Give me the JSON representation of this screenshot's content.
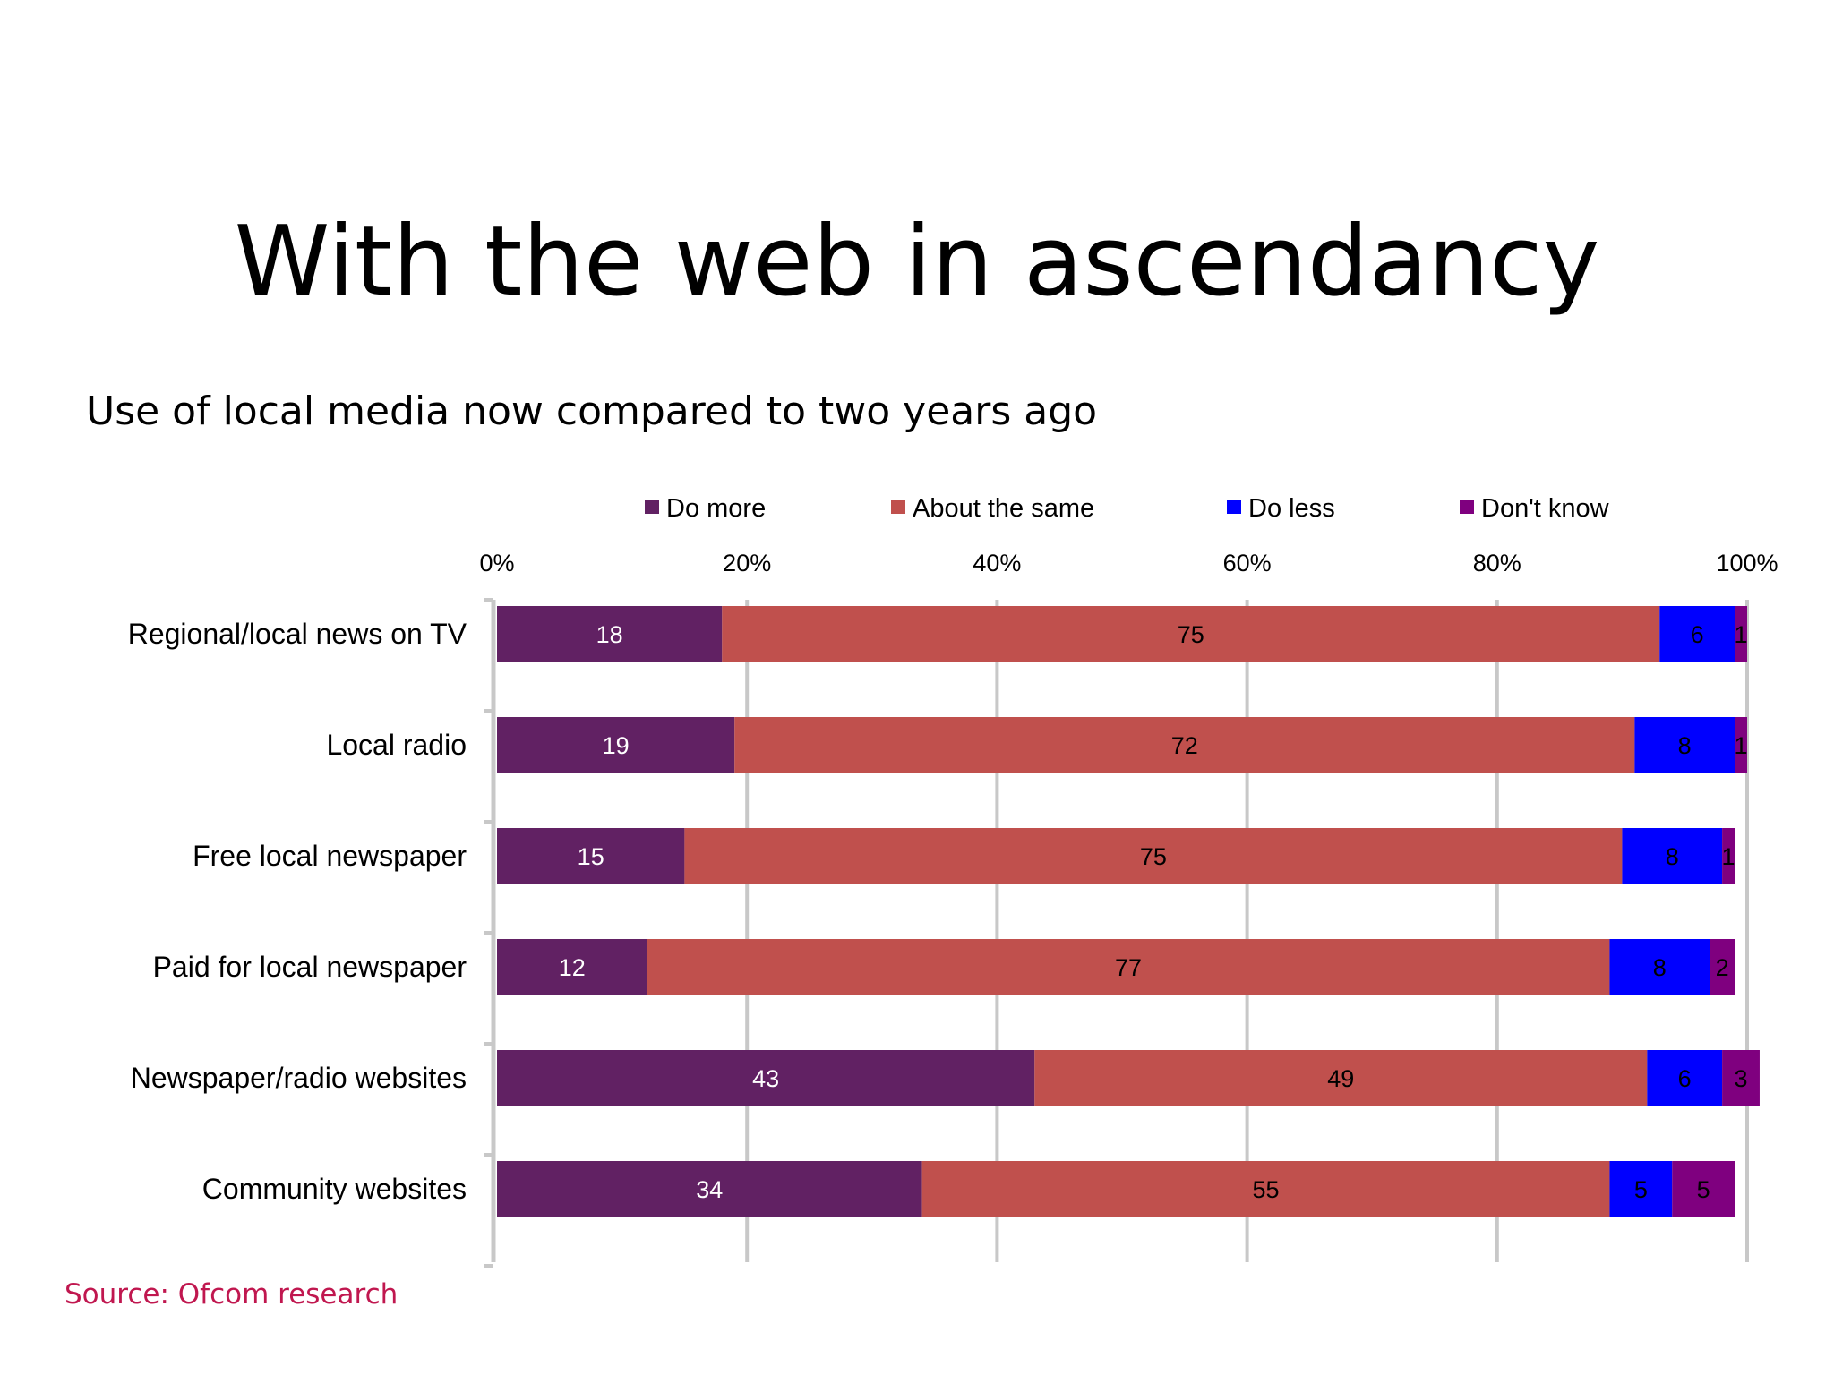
{
  "slide": {
    "title": "With the web in ascendancy",
    "subtitle": "Use of local media now compared to two years ago",
    "source": "Source: Ofcom research"
  },
  "chart_data": {
    "type": "bar",
    "orientation": "horizontal",
    "stacked": true,
    "categories": [
      "Regional/local news on TV",
      "Local radio",
      "Free local newspaper",
      "Paid for local newspaper",
      "Newspaper/radio websites",
      "Community websites"
    ],
    "series": [
      {
        "name": "Do more",
        "color": "#612163",
        "label_color": "#ffffff",
        "values": [
          18,
          19,
          15,
          12,
          43,
          34
        ]
      },
      {
        "name": "About the same",
        "color": "#c0504d",
        "label_color": "#000000",
        "values": [
          75,
          72,
          75,
          77,
          49,
          55
        ]
      },
      {
        "name": "Do less",
        "color": "#0000ff",
        "label_color": "#000000",
        "values": [
          6,
          8,
          8,
          8,
          6,
          5
        ]
      },
      {
        "name": "Don't know",
        "color": "#7f007f",
        "label_color": "#000000",
        "values": [
          1,
          1,
          1,
          2,
          3,
          5
        ]
      }
    ],
    "x_ticks": [
      "0%",
      "20%",
      "40%",
      "60%",
      "80%",
      "100%"
    ],
    "xlim": [
      0,
      100
    ],
    "grid": true,
    "legend_position": "top",
    "axis_position": "top"
  }
}
